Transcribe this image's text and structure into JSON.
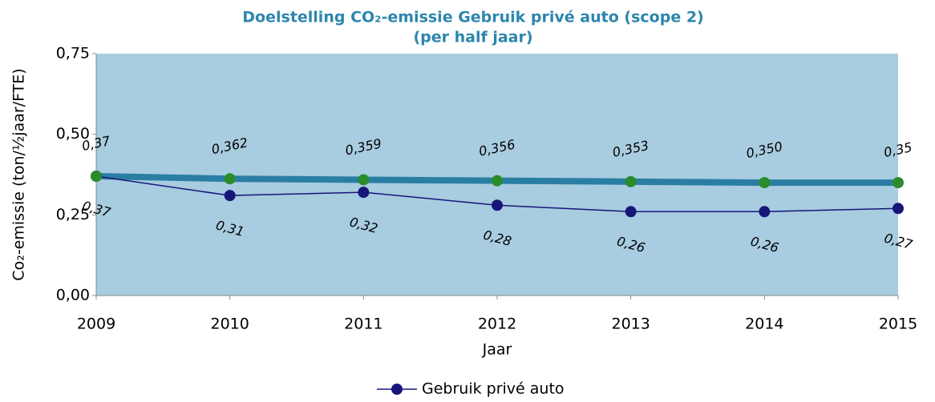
{
  "chart_data": {
    "type": "line",
    "title": "Doelstelling CO₂-emissie Gebruik privé auto (scope 2)",
    "subtitle": "(per half jaar)",
    "x_label": "Jaar",
    "y_label": "Co₂-emissie (ton/½jaar/FTE)",
    "x": [
      2009,
      2010,
      2011,
      2012,
      2013,
      2014,
      2015
    ],
    "xlim": [
      2009,
      2015
    ],
    "xticks": [
      2009,
      2010,
      2011,
      2012,
      2013,
      2014,
      2015
    ],
    "ylim": [
      0,
      0.75
    ],
    "yticks": [
      {
        "value": 0,
        "label": "0,00"
      },
      {
        "value": 0.25,
        "label": "0,25"
      },
      {
        "value": 0.5,
        "label": "0,50"
      },
      {
        "value": 0.75,
        "label": "0,75"
      }
    ],
    "legend": "bottom",
    "series": [
      {
        "name": "Gebruik privé auto",
        "color": "#16167a",
        "marker_color": "#16167a",
        "values": [
          0.37,
          0.31,
          0.32,
          0.28,
          0.26,
          0.26,
          0.27
        ],
        "value_labels": [
          "0,37",
          "0,31",
          "0,32",
          "0,28",
          "0,26",
          "0,26",
          "0,27"
        ]
      },
      {
        "color": "#2b7ea3",
        "marker_color": "#2a8c2a",
        "values": [
          0.37,
          0.362,
          0.359,
          0.356,
          0.353,
          0.35,
          0.35
        ],
        "value_labels": [
          "0,37",
          "0,362",
          "0,359",
          "0,356",
          "0,353",
          "0,350",
          "0,35"
        ]
      }
    ]
  }
}
